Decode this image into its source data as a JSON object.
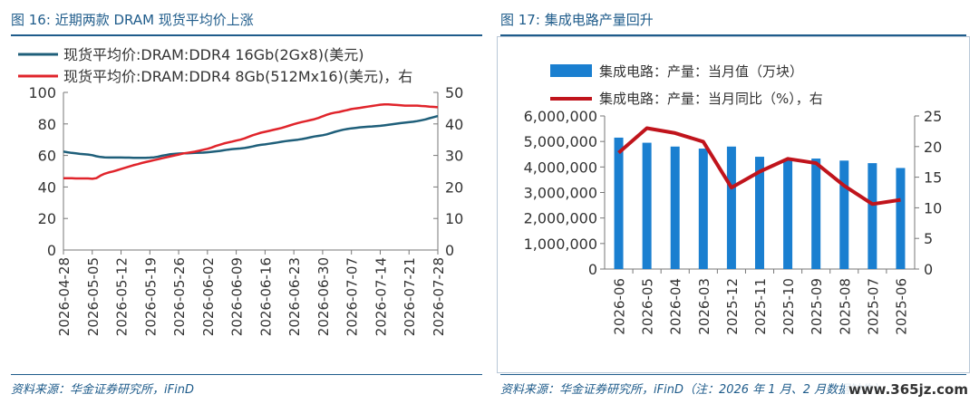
{
  "left_panel": {
    "figure_label": "图 16:",
    "title": "近期两款 DRAM 现货平均价上涨",
    "source": "资料来源：华金证券研究所，iFinD"
  },
  "right_panel": {
    "figure_label": "图 17:",
    "title": "集成电路产量回升",
    "source": "资料来源：华金证券研究所，iFinD（注：2026 年 1 月、2 月数据缺失）"
  },
  "watermark": "www.365jz.com",
  "chart_data": [
    {
      "type": "line",
      "title": "",
      "x": [
        "2026-04-28",
        "2026-04-29",
        "2026-04-30",
        "2026-05-01",
        "2026-05-02",
        "2026-05-03",
        "2026-05-04",
        "2026-05-05",
        "2026-05-06",
        "2026-05-07",
        "2026-05-08",
        "2026-05-09",
        "2026-05-10",
        "2026-05-11",
        "2026-05-12",
        "2026-05-13",
        "2026-05-14",
        "2026-05-15",
        "2026-05-16",
        "2026-05-17",
        "2026-05-18",
        "2026-05-19",
        "2026-05-20",
        "2026-05-21",
        "2026-05-22",
        "2026-05-23",
        "2026-05-24",
        "2026-05-25",
        "2026-05-26",
        "2026-05-27",
        "2026-05-28",
        "2026-05-29",
        "2026-05-30",
        "2026-05-31",
        "2026-06-01",
        "2026-06-02",
        "2026-06-03",
        "2026-06-04",
        "2026-06-05",
        "2026-06-06",
        "2026-06-07",
        "2026-06-08",
        "2026-06-09",
        "2026-06-10",
        "2026-06-11",
        "2026-06-12",
        "2026-06-13",
        "2026-06-14",
        "2026-06-15",
        "2026-06-16",
        "2026-06-17",
        "2026-06-18",
        "2026-06-19",
        "2026-06-20",
        "2026-06-21",
        "2026-06-22",
        "2026-06-23",
        "2026-06-24",
        "2026-06-25",
        "2026-06-26",
        "2026-06-27",
        "2026-06-28",
        "2026-06-29",
        "2026-06-30",
        "2026-07-01",
        "2026-07-02",
        "2026-07-03",
        "2026-07-04",
        "2026-07-05",
        "2026-07-06",
        "2026-07-07",
        "2026-07-08",
        "2026-07-09",
        "2026-07-10",
        "2026-07-11",
        "2026-07-12",
        "2026-07-13",
        "2026-07-14",
        "2026-07-15",
        "2026-07-16",
        "2026-07-17",
        "2026-07-18",
        "2026-07-19",
        "2026-07-20",
        "2026-07-21",
        "2026-07-22",
        "2026-07-23",
        "2026-07-24",
        "2026-07-25",
        "2026-07-26",
        "2026-07-27",
        "2026-07-28"
      ],
      "x_tick_labels": [
        "2026-04-28",
        "2026-05-05",
        "2026-05-12",
        "2026-05-19",
        "2026-05-26",
        "2026-06-02",
        "2026-06-09",
        "2026-06-16",
        "2026-06-23",
        "2026-06-30",
        "2026-07-07",
        "2026-07-14",
        "2026-07-21",
        "2026-07-28"
      ],
      "series": [
        {
          "name": "现货平均价:DRAM:DDR4 16Gb(2Gx8)(美元)",
          "axis": "left",
          "color": "#1f5f7a",
          "values": [
            62.5,
            62.0,
            61.6,
            61.3,
            61.0,
            60.8,
            60.6,
            60.2,
            59.5,
            59.0,
            58.8,
            58.7,
            58.7,
            58.7,
            58.7,
            58.6,
            58.6,
            58.5,
            58.5,
            58.5,
            58.5,
            58.6,
            58.8,
            59.2,
            59.8,
            60.3,
            60.8,
            61.0,
            61.2,
            61.3,
            61.4,
            61.5,
            61.6,
            61.7,
            61.8,
            62.0,
            62.3,
            62.6,
            62.9,
            63.3,
            63.7,
            64.0,
            64.2,
            64.4,
            64.7,
            65.2,
            65.7,
            66.3,
            66.7,
            67.0,
            67.4,
            67.8,
            68.2,
            68.7,
            69.1,
            69.4,
            69.7,
            70.0,
            70.4,
            70.9,
            71.5,
            72.0,
            72.4,
            72.8,
            73.4,
            74.2,
            75.0,
            75.7,
            76.3,
            76.8,
            77.2,
            77.5,
            77.8,
            78.0,
            78.2,
            78.4,
            78.6,
            78.8,
            79.1,
            79.4,
            79.8,
            80.2,
            80.5,
            80.8,
            81.1,
            81.4,
            81.8,
            82.3,
            82.9,
            83.6,
            84.3,
            85.0
          ]
        },
        {
          "name": "现货平均价:DRAM:DDR4 8Gb(512Mx16)(美元)，右",
          "axis": "right",
          "color": "#e0242b",
          "values": [
            22.8,
            22.8,
            22.8,
            22.7,
            22.7,
            22.7,
            22.7,
            22.6,
            22.8,
            23.6,
            24.2,
            24.6,
            24.9,
            25.3,
            25.7,
            26.1,
            26.5,
            26.9,
            27.2,
            27.6,
            27.9,
            28.2,
            28.5,
            28.8,
            29.1,
            29.4,
            29.7,
            30.0,
            30.3,
            30.6,
            30.8,
            31.0,
            31.2,
            31.5,
            31.8,
            32.1,
            32.5,
            33.0,
            33.4,
            33.8,
            34.1,
            34.4,
            34.7,
            35.0,
            35.4,
            35.9,
            36.4,
            36.8,
            37.2,
            37.5,
            37.8,
            38.1,
            38.4,
            38.7,
            39.1,
            39.5,
            39.9,
            40.3,
            40.6,
            40.9,
            41.2,
            41.5,
            41.9,
            42.4,
            42.9,
            43.3,
            43.6,
            43.8,
            44.1,
            44.4,
            44.7,
            44.9,
            45.1,
            45.3,
            45.5,
            45.7,
            45.9,
            46.1,
            46.2,
            46.2,
            46.1,
            46.0,
            45.9,
            45.8,
            45.8,
            45.8,
            45.8,
            45.7,
            45.6,
            45.5,
            45.4,
            45.3
          ]
        }
      ],
      "ylim_left": [
        0,
        100
      ],
      "ylim_right": [
        0,
        50
      ],
      "y_ticks_left": [
        0,
        20,
        40,
        60,
        80,
        100
      ],
      "y_ticks_right": [
        0,
        10,
        20,
        30,
        40,
        50
      ],
      "grid": false,
      "legend": "top-left"
    },
    {
      "type": "bar",
      "title": "",
      "categories": [
        "2026-06",
        "2026-05",
        "2026-04",
        "2026-03",
        "2025-12",
        "2025-11",
        "2025-10",
        "2025-09",
        "2025-08",
        "2025-07",
        "2025-06"
      ],
      "series": [
        {
          "name": "集成电路：产量：当月值（万块）",
          "type": "bar",
          "axis": "left",
          "color": "#1a7fd0",
          "values": [
            5150000,
            4950000,
            4800000,
            4720000,
            4800000,
            4400000,
            4300000,
            4330000,
            4250000,
            4150000,
            3960000
          ]
        },
        {
          "name": "集成电路：产量：当月同比（%），右",
          "type": "line",
          "axis": "right",
          "color": "#c0141c",
          "values": [
            19.0,
            23.0,
            22.2,
            20.8,
            13.3,
            15.9,
            18.0,
            17.3,
            13.6,
            10.6,
            11.3
          ]
        }
      ],
      "ylim_left": [
        0,
        6000000
      ],
      "ylim_right": [
        0,
        25
      ],
      "y_tick_labels_left": [
        "0",
        "1,000,000",
        "2,000,000",
        "3,000,000",
        "4,000,000",
        "5,000,000",
        "6,000,000"
      ],
      "y_ticks_right": [
        0,
        5,
        10,
        15,
        20,
        25
      ],
      "grid": false,
      "legend": "top"
    }
  ]
}
